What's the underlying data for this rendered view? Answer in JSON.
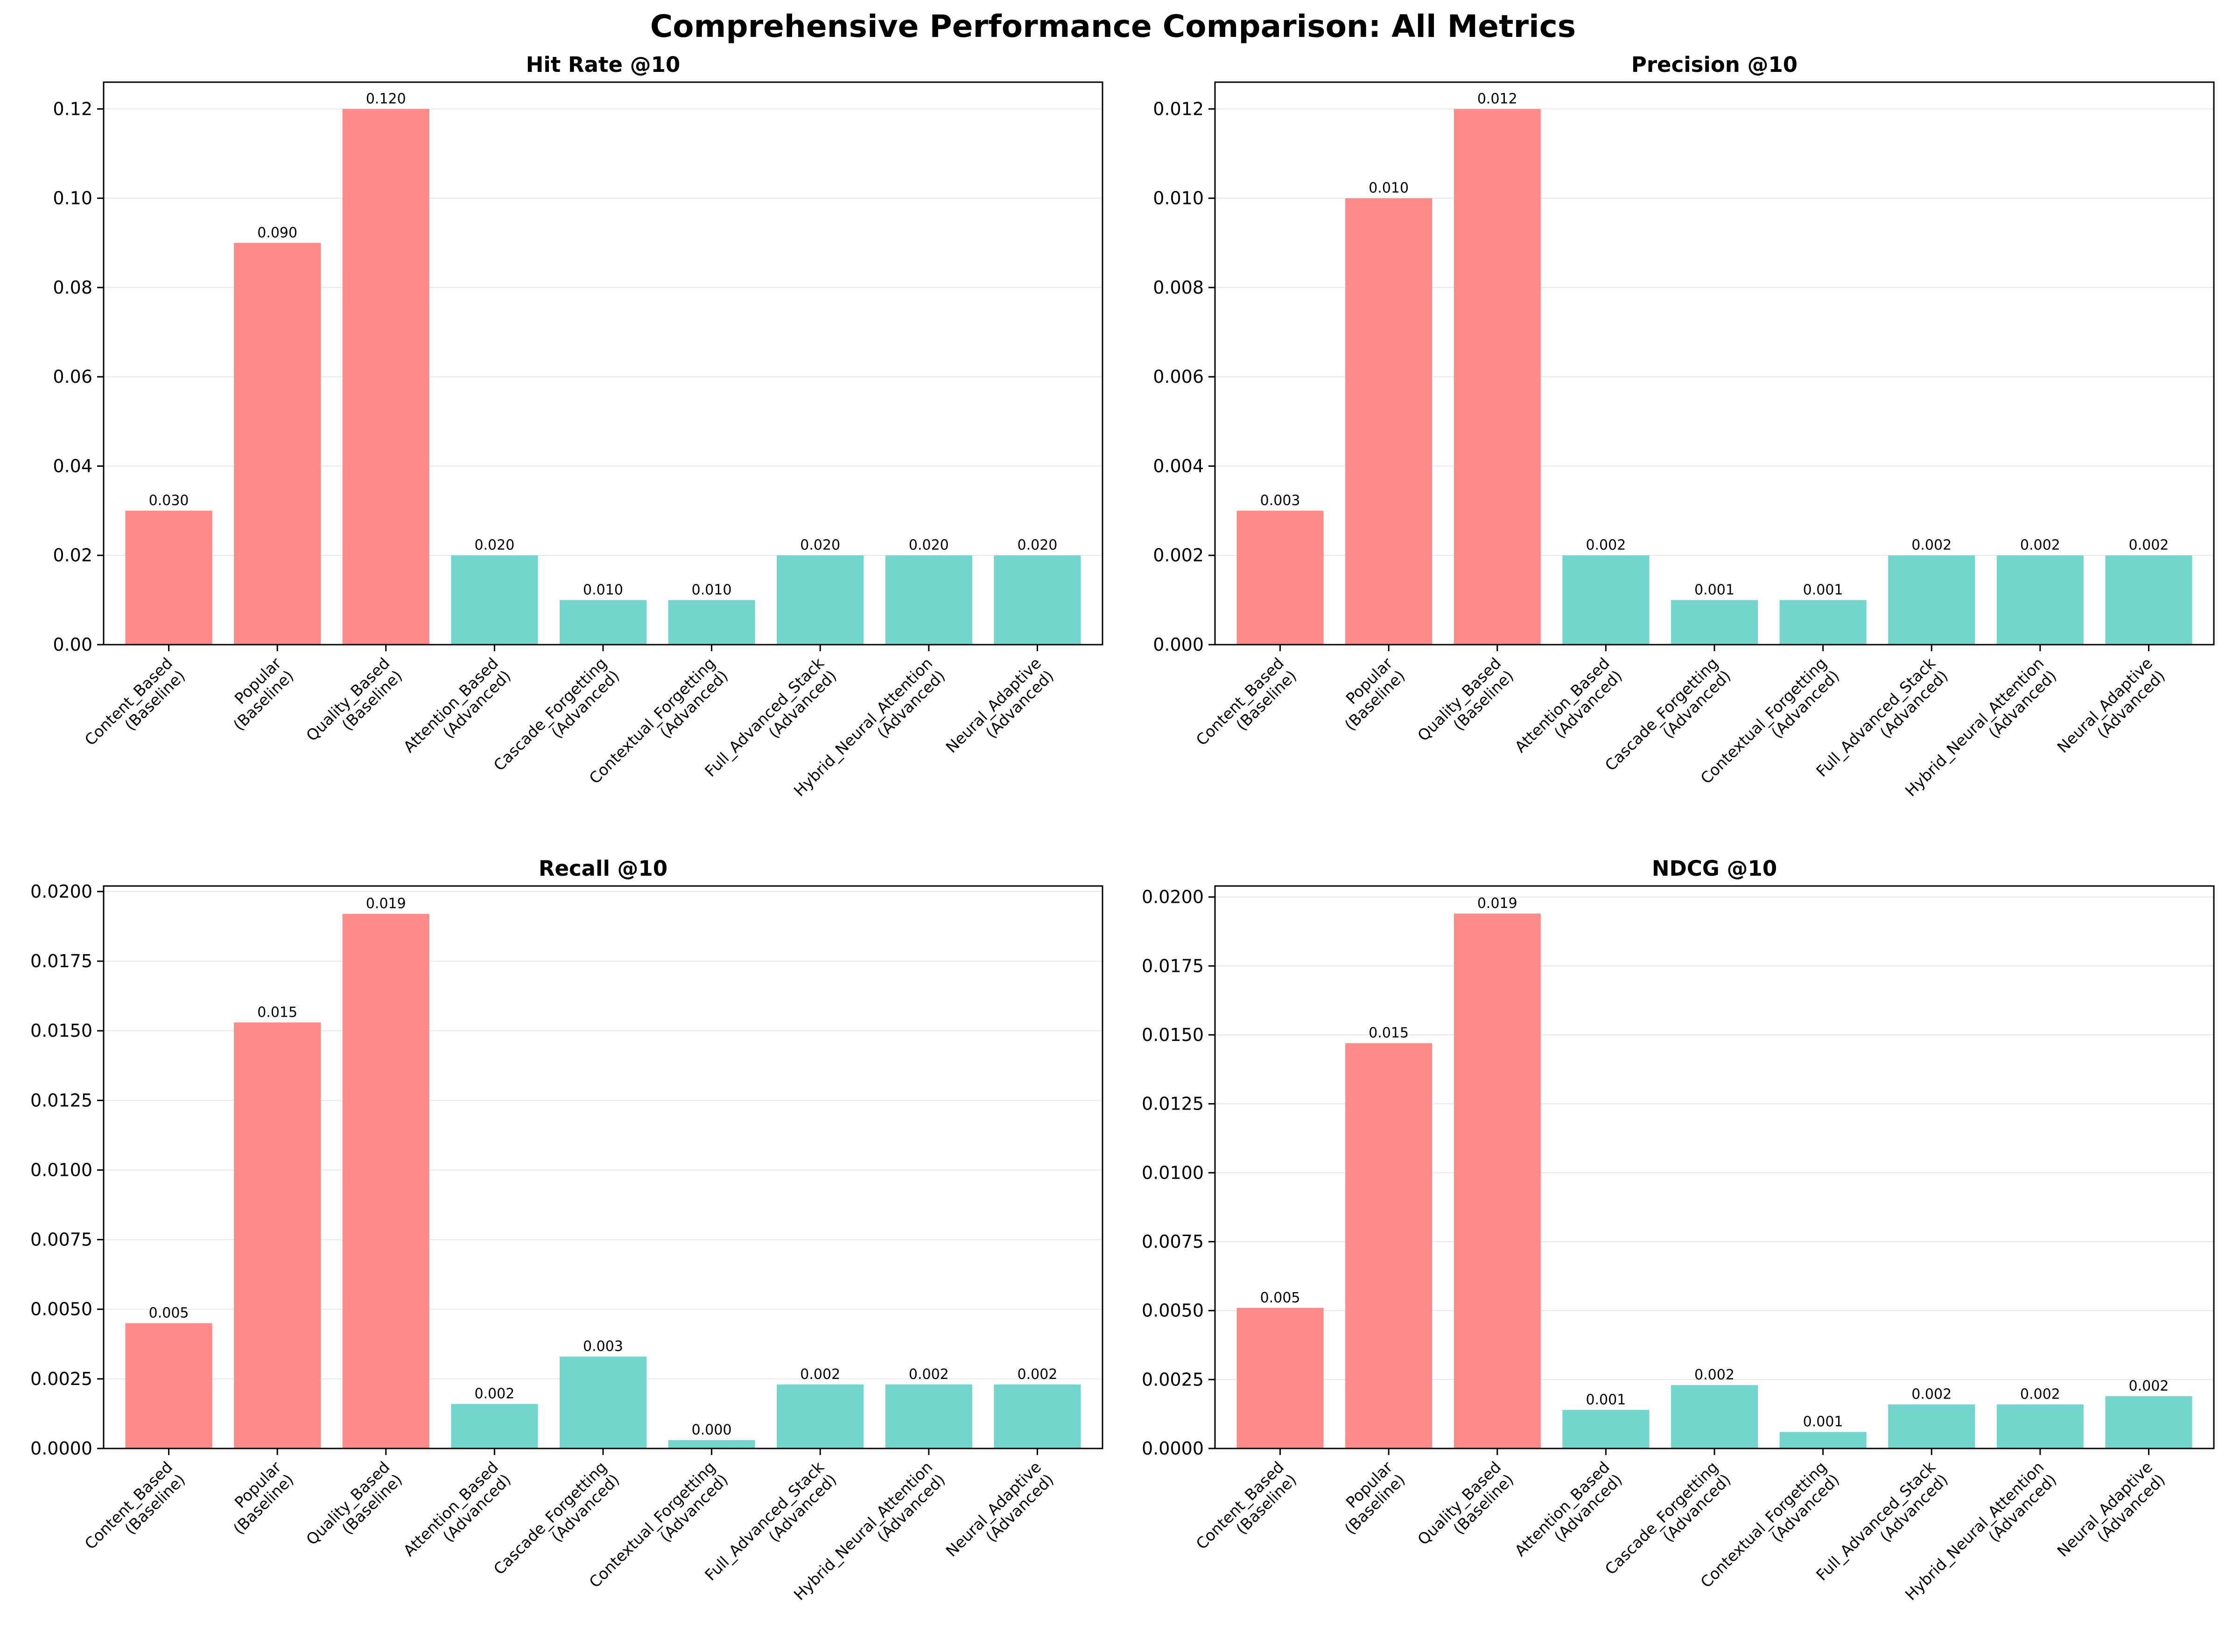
{
  "figure": {
    "title": "Comprehensive Performance Comparison: All Metrics"
  },
  "colors": {
    "baseline": "#ff8a8a",
    "advanced": "#72d6ce",
    "grid": "#e6e6e6",
    "axis": "#000000"
  },
  "chart_data": [
    {
      "type": "bar",
      "title": "Hit Rate @10",
      "xlabel": "",
      "ylabel": "",
      "categories": [
        "Content_Based\n(Baseline)",
        "Popular\n(Baseline)",
        "Quality_Based\n(Baseline)",
        "Attention_Based\n(Advanced)",
        "Cascade_Forgetting\n(Advanced)",
        "Contextual_Forgetting\n(Advanced)",
        "Full_Advanced_Stack\n(Advanced)",
        "Hybrid_Neural_Attention\n(Advanced)",
        "Neural_Adaptive\n(Advanced)"
      ],
      "groups": [
        "baseline",
        "baseline",
        "baseline",
        "advanced",
        "advanced",
        "advanced",
        "advanced",
        "advanced",
        "advanced"
      ],
      "values": [
        0.03,
        0.09,
        0.12,
        0.02,
        0.01,
        0.01,
        0.02,
        0.02,
        0.02
      ],
      "value_labels": [
        "0.030",
        "0.090",
        "0.120",
        "0.020",
        "0.010",
        "0.010",
        "0.020",
        "0.020",
        "0.020"
      ],
      "ylim": [
        0,
        0.126
      ],
      "yticks": [
        0,
        0.02,
        0.04,
        0.06,
        0.08,
        0.1,
        0.12
      ],
      "ytick_labels": [
        "0.00",
        "0.02",
        "0.04",
        "0.06",
        "0.08",
        "0.10",
        "0.12"
      ],
      "grid": true
    },
    {
      "type": "bar",
      "title": "Precision @10",
      "xlabel": "",
      "ylabel": "",
      "categories": [
        "Content_Based\n(Baseline)",
        "Popular\n(Baseline)",
        "Quality_Based\n(Baseline)",
        "Attention_Based\n(Advanced)",
        "Cascade_Forgetting\n(Advanced)",
        "Contextual_Forgetting\n(Advanced)",
        "Full_Advanced_Stack\n(Advanced)",
        "Hybrid_Neural_Attention\n(Advanced)",
        "Neural_Adaptive\n(Advanced)"
      ],
      "groups": [
        "baseline",
        "baseline",
        "baseline",
        "advanced",
        "advanced",
        "advanced",
        "advanced",
        "advanced",
        "advanced"
      ],
      "values": [
        0.003,
        0.01,
        0.012,
        0.002,
        0.001,
        0.001,
        0.002,
        0.002,
        0.002
      ],
      "value_labels": [
        "0.003",
        "0.010",
        "0.012",
        "0.002",
        "0.001",
        "0.001",
        "0.002",
        "0.002",
        "0.002"
      ],
      "ylim": [
        0,
        0.0126
      ],
      "yticks": [
        0,
        0.002,
        0.004,
        0.006,
        0.008,
        0.01,
        0.012
      ],
      "ytick_labels": [
        "0.000",
        "0.002",
        "0.004",
        "0.006",
        "0.008",
        "0.010",
        "0.012"
      ],
      "grid": true
    },
    {
      "type": "bar",
      "title": "Recall @10",
      "xlabel": "",
      "ylabel": "",
      "categories": [
        "Content_Based\n(Baseline)",
        "Popular\n(Baseline)",
        "Quality_Based\n(Baseline)",
        "Attention_Based\n(Advanced)",
        "Cascade_Forgetting\n(Advanced)",
        "Contextual_Forgetting\n(Advanced)",
        "Full_Advanced_Stack\n(Advanced)",
        "Hybrid_Neural_Attention\n(Advanced)",
        "Neural_Adaptive\n(Advanced)"
      ],
      "groups": [
        "baseline",
        "baseline",
        "baseline",
        "advanced",
        "advanced",
        "advanced",
        "advanced",
        "advanced",
        "advanced"
      ],
      "values": [
        0.0045,
        0.0153,
        0.0192,
        0.0016,
        0.0033,
        0.0003,
        0.0023,
        0.0023,
        0.0023
      ],
      "value_labels": [
        "0.005",
        "0.015",
        "0.019",
        "0.002",
        "0.003",
        "0.000",
        "0.002",
        "0.002",
        "0.002"
      ],
      "ylim": [
        0,
        0.0202
      ],
      "yticks": [
        0,
        0.0025,
        0.005,
        0.0075,
        0.01,
        0.0125,
        0.015,
        0.0175,
        0.02
      ],
      "ytick_labels": [
        "0.0000",
        "0.0025",
        "0.0050",
        "0.0075",
        "0.0100",
        "0.0125",
        "0.0150",
        "0.0175",
        "0.0200"
      ],
      "grid": true
    },
    {
      "type": "bar",
      "title": "NDCG @10",
      "xlabel": "",
      "ylabel": "",
      "categories": [
        "Content_Based\n(Baseline)",
        "Popular\n(Baseline)",
        "Quality_Based\n(Baseline)",
        "Attention_Based\n(Advanced)",
        "Cascade_Forgetting\n(Advanced)",
        "Contextual_Forgetting\n(Advanced)",
        "Full_Advanced_Stack\n(Advanced)",
        "Hybrid_Neural_Attention\n(Advanced)",
        "Neural_Adaptive\n(Advanced)"
      ],
      "groups": [
        "baseline",
        "baseline",
        "baseline",
        "advanced",
        "advanced",
        "advanced",
        "advanced",
        "advanced",
        "advanced"
      ],
      "values": [
        0.0051,
        0.0147,
        0.0194,
        0.0014,
        0.0023,
        0.0006,
        0.0016,
        0.0016,
        0.0019
      ],
      "value_labels": [
        "0.005",
        "0.015",
        "0.019",
        "0.001",
        "0.002",
        "0.001",
        "0.002",
        "0.002",
        "0.002"
      ],
      "ylim": [
        0,
        0.0204
      ],
      "yticks": [
        0,
        0.0025,
        0.005,
        0.0075,
        0.01,
        0.0125,
        0.015,
        0.0175,
        0.02
      ],
      "ytick_labels": [
        "0.0000",
        "0.0025",
        "0.0050",
        "0.0075",
        "0.0100",
        "0.0125",
        "0.0150",
        "0.0175",
        "0.0200"
      ],
      "grid": true
    }
  ]
}
